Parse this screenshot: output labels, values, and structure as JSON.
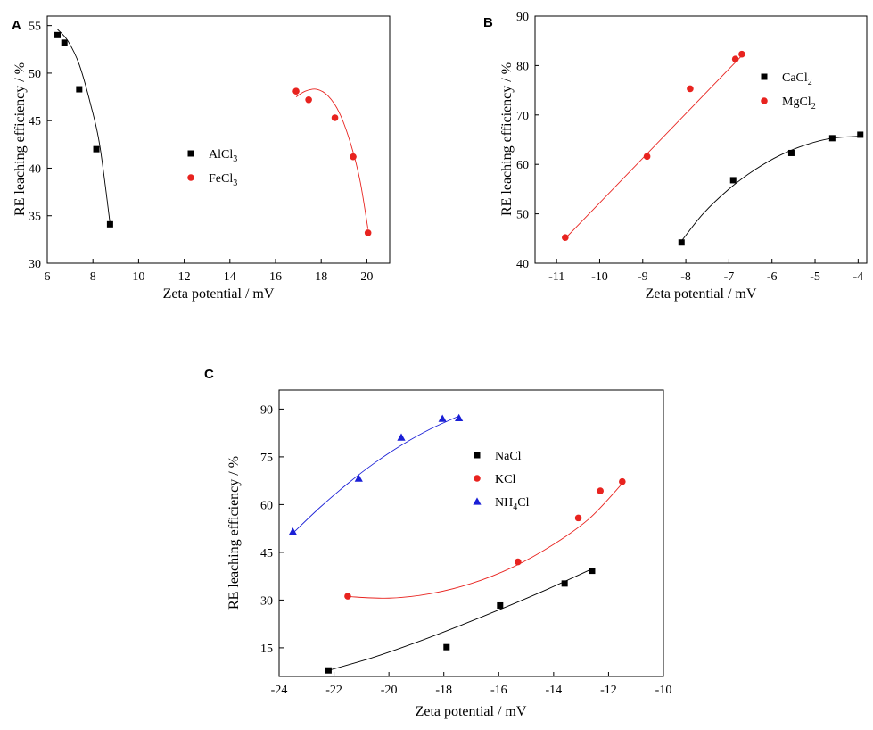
{
  "figure": {
    "panels": [
      "A",
      "B",
      "C"
    ]
  },
  "chart_data": [
    {
      "panel": "A",
      "type": "scatter",
      "xlabel": "Zeta potential / mV",
      "ylabel": "RE leaching efficiency / %",
      "xlim": [
        6,
        21
      ],
      "ylim": [
        30,
        56
      ],
      "xticks": [
        "6",
        "8",
        "10",
        "12",
        "14",
        "16",
        "18",
        "20"
      ],
      "yticks": [
        "30",
        "35",
        "40",
        "45",
        "50",
        "55"
      ],
      "series": [
        {
          "name": "AlCl",
          "sub": "3",
          "color": "#000000",
          "marker": "square",
          "x": [
            6.45,
            6.75,
            7.4,
            8.15,
            8.75
          ],
          "y": [
            54.0,
            53.2,
            48.3,
            42.0,
            34.1
          ],
          "fit": [
            [
              6.45,
              54.6
            ],
            [
              6.9,
              53.4
            ],
            [
              7.4,
              50.9
            ],
            [
              7.9,
              46.7
            ],
            [
              8.3,
              42.4
            ],
            [
              8.75,
              34.2
            ]
          ]
        },
        {
          "name": "FeCl",
          "sub": "3",
          "color": "#e8231f",
          "marker": "circle",
          "x": [
            16.9,
            17.45,
            18.6,
            19.4,
            20.05
          ],
          "y": [
            48.1,
            47.2,
            45.3,
            41.2,
            33.2
          ],
          "fit": [
            [
              16.9,
              47.5
            ],
            [
              17.3,
              48.1
            ],
            [
              17.8,
              48.3
            ],
            [
              18.3,
              47.6
            ],
            [
              18.8,
              45.8
            ],
            [
              19.3,
              42.5
            ],
            [
              19.7,
              38.7
            ],
            [
              20.05,
              33.6
            ]
          ]
        }
      ]
    },
    {
      "panel": "B",
      "type": "scatter",
      "xlabel": "Zeta potential / mV",
      "ylabel": "RE leaching efficiency / %",
      "xlim": [
        -11.5,
        -3.8
      ],
      "ylim": [
        40,
        90
      ],
      "xticks": [
        "-11",
        "-10",
        "-9",
        "-8",
        "-7",
        "-6",
        "-5",
        "-4"
      ],
      "yticks": [
        "40",
        "50",
        "60",
        "70",
        "80",
        "90"
      ],
      "series": [
        {
          "name": "CaCl",
          "sub": "2",
          "color": "#000000",
          "marker": "square",
          "x": [
            -8.1,
            -6.9,
            -5.55,
            -4.6,
            -3.95
          ],
          "y": [
            44.2,
            56.8,
            62.3,
            65.3,
            66.0
          ],
          "fit": [
            [
              -8.1,
              44.5
            ],
            [
              -7.6,
              50.0
            ],
            [
              -7.0,
              55.0
            ],
            [
              -6.4,
              58.9
            ],
            [
              -5.8,
              61.9
            ],
            [
              -5.2,
              64.0
            ],
            [
              -4.6,
              65.3
            ],
            [
              -3.95,
              65.7
            ]
          ]
        },
        {
          "name": "MgCl",
          "sub": "2",
          "color": "#e8231f",
          "marker": "circle",
          "x": [
            -10.8,
            -8.9,
            -7.9,
            -6.85,
            -6.7
          ],
          "y": [
            45.2,
            61.6,
            75.3,
            81.3,
            82.3
          ],
          "fit": [
            [
              -10.8,
              45.0
            ],
            [
              -6.7,
              82.0
            ]
          ]
        }
      ]
    },
    {
      "panel": "C",
      "type": "scatter",
      "xlabel": "Zeta potential / mV",
      "ylabel": "RE leaching efficiency / %",
      "xlim": [
        -24,
        -10
      ],
      "ylim": [
        6,
        96
      ],
      "xticks": [
        "-24",
        "-22",
        "-20",
        "-18",
        "-16",
        "-14",
        "-12",
        "-10"
      ],
      "yticks": [
        "15",
        "30",
        "45",
        "60",
        "75",
        "90"
      ],
      "series": [
        {
          "name": "NaCl",
          "sub": "",
          "color": "#000000",
          "marker": "square",
          "x": [
            -22.2,
            -17.9,
            -15.95,
            -13.6,
            -12.6
          ],
          "y": [
            7.9,
            15.2,
            28.3,
            35.2,
            39.2
          ],
          "fit": [
            [
              -22.2,
              7.9
            ],
            [
              -20.6,
              11.9
            ],
            [
              -19.0,
              16.7
            ],
            [
              -17.4,
              22.0
            ],
            [
              -15.8,
              27.6
            ],
            [
              -14.2,
              33.5
            ],
            [
              -12.6,
              39.8
            ]
          ]
        },
        {
          "name": "KCl",
          "sub": "",
          "color": "#e8231f",
          "marker": "circle",
          "x": [
            -21.5,
            -15.3,
            -13.1,
            -12.3,
            -11.5
          ],
          "y": [
            31.2,
            42.0,
            55.8,
            64.3,
            67.2
          ],
          "fit": [
            [
              -21.5,
              31.1
            ],
            [
              -20.0,
              30.6
            ],
            [
              -18.5,
              32.0
            ],
            [
              -17.0,
              35.2
            ],
            [
              -15.5,
              40.3
            ],
            [
              -14.0,
              47.5
            ],
            [
              -12.7,
              55.6
            ],
            [
              -11.5,
              66.6
            ]
          ]
        },
        {
          "name": "NH",
          "sub": "4",
          "tail": "Cl",
          "color": "#1a1fd6",
          "marker": "triangle",
          "x": [
            -23.5,
            -21.1,
            -19.55,
            -18.05,
            -17.45
          ],
          "y": [
            51.5,
            68.2,
            81.1,
            87.0,
            87.2
          ],
          "fit": [
            [
              -23.5,
              51.0
            ],
            [
              -22.5,
              59.2
            ],
            [
              -21.5,
              66.6
            ],
            [
              -20.5,
              73.2
            ],
            [
              -19.5,
              78.9
            ],
            [
              -18.5,
              83.7
            ],
            [
              -17.45,
              87.8
            ]
          ]
        }
      ]
    }
  ]
}
